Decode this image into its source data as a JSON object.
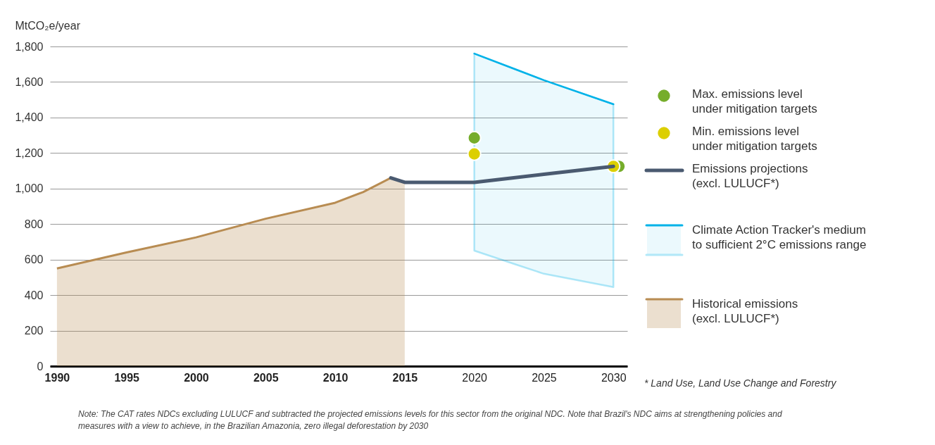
{
  "chart_data": {
    "type": "line",
    "ylabel": "MtCO₂e/year",
    "xlim": [
      1989.5,
      2031
    ],
    "xticks": [
      1990,
      1995,
      2000,
      2005,
      2010,
      2015,
      2020,
      2025,
      2030
    ],
    "ylim": [
      0,
      1800
    ],
    "yticks": [
      0,
      200,
      400,
      600,
      800,
      {
        "value": 1000,
        "label": "1,000"
      },
      {
        "value": 1200,
        "label": "1,200"
      },
      {
        "value": 1400,
        "label": "1,400"
      },
      {
        "value": 1600,
        "label": "1,600"
      },
      {
        "value": 1800,
        "label": "1,800"
      }
    ],
    "grid": "y",
    "legend": "right",
    "series": [
      {
        "name": "Climate Action Tracker's medium\nto sufficient 2°C emissions range",
        "type": "line",
        "color": "#00b2e8",
        "x": [
          2020,
          2023,
          2025,
          2030
        ],
        "values": [
          1760,
          1670,
          1610,
          1475
        ],
        "lower": [
          650,
          572,
          520,
          445
        ],
        "upper": [
          1760,
          1670,
          1610,
          1475
        ]
      },
      {
        "name": "Historical emissions\n(excl. LULUCF*)",
        "type": "area",
        "color": "#b88c52",
        "x": [
          1990,
          1995,
          2000,
          2005,
          2010,
          2012,
          2014,
          2015
        ],
        "values": [
          550,
          640,
          725,
          830,
          920,
          980,
          1060,
          1035
        ]
      },
      {
        "name": "Emissions projections\n(excl. LULUCF*)",
        "color": "#4a5a70",
        "x": [
          2014,
          2015,
          2020,
          2025,
          2030
        ],
        "values": [
          1060,
          1035,
          1035,
          1080,
          1125
        ]
      },
      {
        "name": "Max. emissions level\nunder mitigation targets",
        "type": "scatter",
        "color": "#76ad2b",
        "x": [
          2020,
          2030.4
        ],
        "values": [
          1285,
          1125
        ]
      },
      {
        "name": "Min. emissions level\nunder mitigation targets",
        "type": "scatter",
        "color": "#dccf00",
        "x": [
          2020,
          2030
        ],
        "values": [
          1195,
          1125
        ]
      }
    ],
    "annotations": [
      "* Land Use, Land Use Change and Forestry",
      "Note: The CAT rates NDCs excluding LULUCF and subtracted the projected emissions levels for this sector from the original NDC. Note that Brazil's NDC aims at strengthening policies and measures with a view to achieve, in the Brazilian Amazonia, zero illegal deforestation by 2030"
    ]
  }
}
